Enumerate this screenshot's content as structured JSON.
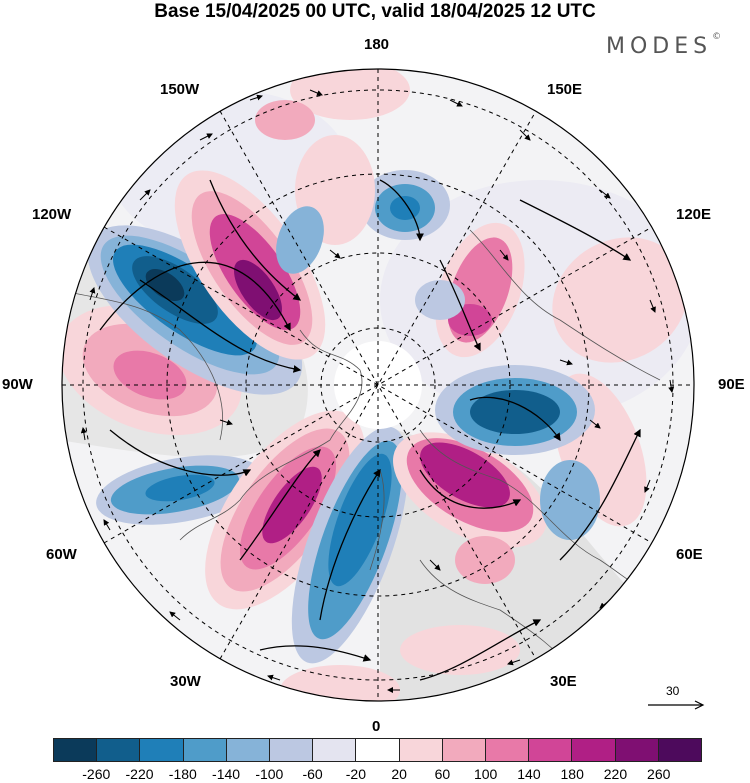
{
  "title": "Base 15/04/2025 00 UTC, valid 18/04/2025 12 UTC",
  "brand": "MODES",
  "brand_mark": "©",
  "longitude_labels": {
    "top": "180",
    "top_left": "150W",
    "top_right": "150E",
    "upper_left": "120W",
    "upper_right": "120E",
    "left": "90W",
    "right": "90E",
    "lower_left": "60W",
    "lower_right": "60E",
    "bottom_left": "30W",
    "bottom_right": "30E",
    "bottom": "0"
  },
  "reference_vector": {
    "value": "30"
  },
  "colorbar": {
    "ticks": [
      "-260",
      "-220",
      "-180",
      "-140",
      "-100",
      "-60",
      "-20",
      "20",
      "60",
      "100",
      "140",
      "180",
      "220",
      "260"
    ],
    "colors": [
      "#0b3a5a",
      "#115e8c",
      "#1f7fb8",
      "#4f9cc9",
      "#86b3d8",
      "#bcc8e2",
      "#e4e4f0",
      "#ffffff",
      "#f8d6da",
      "#f2aabd",
      "#e879a8",
      "#d14597",
      "#b01f85",
      "#7f0f72",
      "#4d0a5c"
    ]
  },
  "colors": {
    "coast": "#555555",
    "land": "#d9d9d9",
    "grid": "#000000",
    "streamline": "#000000"
  }
}
